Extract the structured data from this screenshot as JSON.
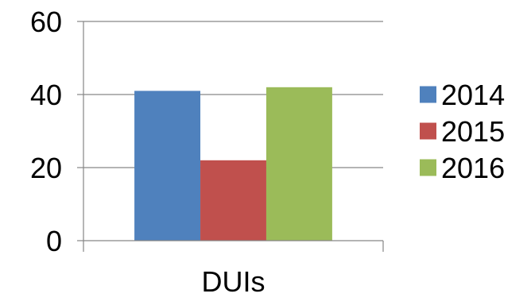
{
  "chart_data": {
    "type": "bar",
    "title": "",
    "xlabel": "",
    "ylabel": "",
    "categories": [
      "DUIs"
    ],
    "series": [
      {
        "name": "2014",
        "values": [
          41
        ],
        "color": "#4F81BD"
      },
      {
        "name": "2015",
        "values": [
          22
        ],
        "color": "#C0504D"
      },
      {
        "name": "2016",
        "values": [
          42
        ],
        "color": "#9BBB59"
      }
    ],
    "ylim": [
      0,
      60
    ],
    "yticks": [
      "0",
      "20",
      "40",
      "60"
    ],
    "grid": true,
    "legend": "right"
  }
}
